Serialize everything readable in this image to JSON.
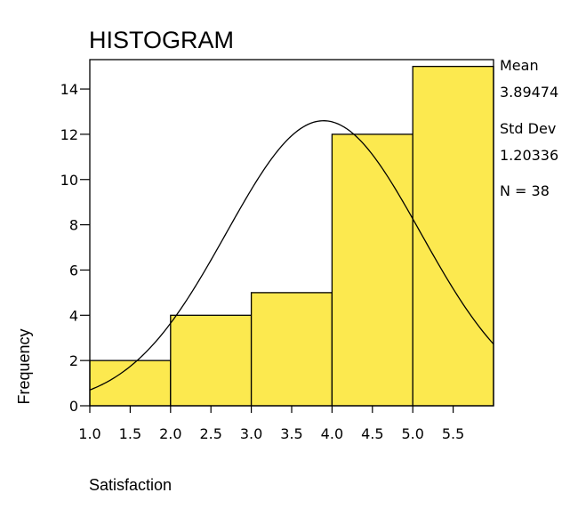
{
  "chart_data": {
    "type": "bar",
    "title": "HISTOGRAM",
    "xlabel": "Satisfaction",
    "ylabel": "Frequency",
    "xlim": [
      1.0,
      6.0
    ],
    "ylim": [
      0,
      15.3
    ],
    "bins": [
      {
        "x0": 1.0,
        "x1": 2.0,
        "count": 2
      },
      {
        "x0": 2.0,
        "x1": 3.0,
        "count": 4
      },
      {
        "x0": 3.0,
        "x1": 4.0,
        "count": 5
      },
      {
        "x0": 4.0,
        "x1": 5.0,
        "count": 12
      },
      {
        "x0": 5.0,
        "x1": 6.0,
        "count": 15
      }
    ],
    "x_ticks": [
      {
        "value": 1.0,
        "label": "1.0"
      },
      {
        "value": 1.5,
        "label": "1.5"
      },
      {
        "value": 2.0,
        "label": "2.0"
      },
      {
        "value": 2.5,
        "label": "2.5"
      },
      {
        "value": 3.0,
        "label": "3.0"
      },
      {
        "value": 3.5,
        "label": "3.5"
      },
      {
        "value": 4.0,
        "label": "4.0"
      },
      {
        "value": 4.5,
        "label": "4.5"
      },
      {
        "value": 5.0,
        "label": "5.0"
      },
      {
        "value": 5.5,
        "label": "5.5"
      }
    ],
    "y_ticks": [
      {
        "value": 0,
        "label": "0"
      },
      {
        "value": 2,
        "label": "2"
      },
      {
        "value": 4,
        "label": "4"
      },
      {
        "value": 6,
        "label": "6"
      },
      {
        "value": 8,
        "label": "8"
      },
      {
        "value": 10,
        "label": "10"
      },
      {
        "value": 12,
        "label": "12"
      },
      {
        "value": 14,
        "label": "14"
      }
    ],
    "normal_curve": {
      "mean": 3.89474,
      "sd": 1.20336,
      "n": 38,
      "bin_width": 1.0
    },
    "bar_color": "#FCE94F",
    "edge_color": "#000000"
  },
  "stats": {
    "mean_label": "Mean",
    "mean_value": "3.89474",
    "sd_label": "Std Dev",
    "sd_value": "1.20336",
    "n_text": "N = 38"
  }
}
